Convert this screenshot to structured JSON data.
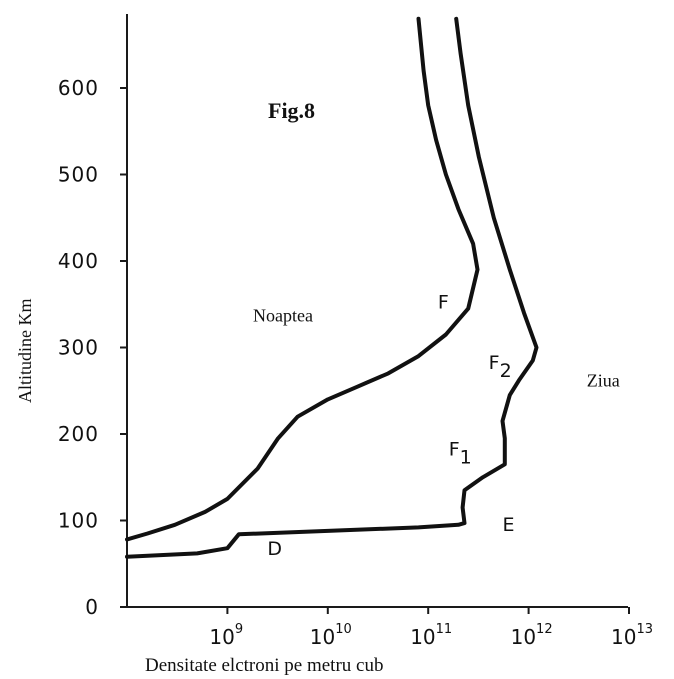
{
  "chart_data": {
    "type": "line",
    "title": "Fig.8",
    "xlabel": "Densitate elctroni pe metru cub",
    "ylabel": "Altitudine Km",
    "x_scale": "log",
    "xlim": [
      100000000.0,
      10000000000000.0
    ],
    "ylim": [
      0,
      650
    ],
    "x_ticks": [
      {
        "value": 1000000000.0,
        "base": "10",
        "exp": "9"
      },
      {
        "value": 10000000000.0,
        "base": "10",
        "exp": "10"
      },
      {
        "value": 100000000000.0,
        "base": "10",
        "exp": "11"
      },
      {
        "value": 1000000000000.0,
        "base": "10",
        "exp": "12"
      },
      {
        "value": 10000000000000.0,
        "base": "10",
        "exp": "13"
      }
    ],
    "y_ticks": [
      0,
      100,
      200,
      300,
      400,
      500,
      600
    ],
    "series": [
      {
        "name": "Noaptea",
        "points": [
          [
            100000000.0,
            78
          ],
          [
            160000000.0,
            85
          ],
          [
            300000000.0,
            95
          ],
          [
            600000000.0,
            110
          ],
          [
            1000000000.0,
            125
          ],
          [
            2000000000.0,
            160
          ],
          [
            3200000000.0,
            195
          ],
          [
            5000000000.0,
            220
          ],
          [
            10000000000.0,
            240
          ],
          [
            20000000000.0,
            255
          ],
          [
            40000000000.0,
            270
          ],
          [
            80000000000.0,
            290
          ],
          [
            150000000000.0,
            315
          ],
          [
            250000000000.0,
            345
          ],
          [
            310000000000.0,
            390
          ],
          [
            280000000000.0,
            420
          ],
          [
            200000000000.0,
            460
          ],
          [
            150000000000.0,
            500
          ],
          [
            120000000000.0,
            540
          ],
          [
            100000000000.0,
            580
          ],
          [
            90000000000.0,
            620
          ],
          [
            80000000000.0,
            680
          ]
        ]
      },
      {
        "name": "Ziua",
        "points": [
          [
            100000000.0,
            58
          ],
          [
            500000000.0,
            62
          ],
          [
            1000000000.0,
            68
          ],
          [
            1300000000.0,
            84
          ],
          [
            10000000000.0,
            88
          ],
          [
            80000000000.0,
            92
          ],
          [
            200000000000.0,
            95
          ],
          [
            230000000000.0,
            97
          ],
          [
            220000000000.0,
            115
          ],
          [
            230000000000.0,
            135
          ],
          [
            350000000000.0,
            150
          ],
          [
            580000000000.0,
            165
          ],
          [
            580000000000.0,
            195
          ],
          [
            550000000000.0,
            215
          ],
          [
            650000000000.0,
            245
          ],
          [
            800000000000.0,
            262
          ],
          [
            1100000000000.0,
            285
          ],
          [
            1200000000000.0,
            300
          ],
          [
            900000000000.0,
            340
          ],
          [
            650000000000.0,
            390
          ],
          [
            450000000000.0,
            450
          ],
          [
            320000000000.0,
            520
          ],
          [
            250000000000.0,
            580
          ],
          [
            210000000000.0,
            640
          ],
          [
            190000000000.0,
            680
          ]
        ]
      }
    ],
    "annotations": [
      {
        "text": "F",
        "x": 125000000000.0,
        "y": 345
      },
      {
        "text": "F",
        "sub": "2",
        "x": 400000000000.0,
        "y": 275
      },
      {
        "text": "F",
        "sub": "1",
        "x": 160000000000.0,
        "y": 175
      },
      {
        "text": "E",
        "x": 550000000000.0,
        "y": 88
      },
      {
        "text": "D",
        "x": 2500000000.0,
        "y": 60
      },
      {
        "text": "Noaptea",
        "x": 1800000000.0,
        "y": 330
      },
      {
        "text": "Ziua",
        "x": 3800000000000.0,
        "y": 255
      }
    ]
  }
}
